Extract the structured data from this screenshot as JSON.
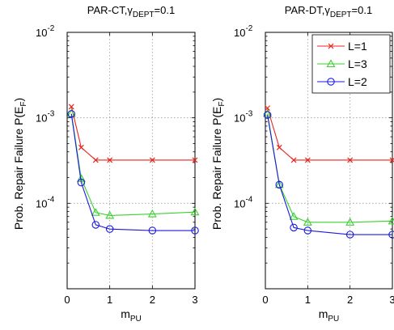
{
  "chart_data": [
    {
      "type": "line",
      "title": "PAR-CT,",
      "title_math": "γ",
      "title_sub": "DEPT",
      "title_tail": "=0.1",
      "xlabel": "m",
      "xlabel_sub": "PU",
      "ylabel": "Prob. Repair Failure P(E",
      "ylabel_sub": "F",
      "ylabel_tail": ")",
      "xlim": [
        0,
        3
      ],
      "ylim": [
        1e-05,
        0.01
      ],
      "yscale": "log",
      "grid": true,
      "xticks": [
        "0",
        "1",
        "2",
        "3"
      ],
      "ytick_labels": [
        {
          "base": "10",
          "exp": "-4",
          "value": 0.0001
        },
        {
          "base": "10",
          "exp": "-3",
          "value": 0.001
        },
        {
          "base": "10",
          "exp": "-2",
          "value": 0.01
        }
      ],
      "series": [
        {
          "name": "L=1",
          "color": "#e8261e",
          "marker": "x",
          "x": [
            0.1,
            0.33,
            0.67,
            1,
            2,
            3
          ],
          "y": [
            0.00135,
            0.00045,
            0.00032,
            0.00032,
            0.00032,
            0.00032
          ]
        },
        {
          "name": "L=3",
          "color": "#3ad12f",
          "marker": "triangle",
          "x": [
            0.1,
            0.33,
            0.67,
            1,
            2,
            3
          ],
          "y": [
            0.00112,
            0.000195,
            7.8e-05,
            7.2e-05,
            7.5e-05,
            7.9e-05
          ]
        },
        {
          "name": "L=2",
          "color": "#1a1adc",
          "marker": "circle",
          "x": [
            0.1,
            0.33,
            0.67,
            1,
            2,
            3
          ],
          "y": [
            0.00111,
            0.000175,
            5.6e-05,
            5e-05,
            4.8e-05,
            4.8e-05
          ]
        }
      ]
    },
    {
      "type": "line",
      "title": "PAR-DT,",
      "title_math": "γ",
      "title_sub": "DEPT",
      "title_tail": "=0.1",
      "xlabel": "m",
      "xlabel_sub": "PU",
      "ylabel": "Prob. Repair Failure P(E",
      "ylabel_sub": "F",
      "ylabel_tail": ")",
      "xlim": [
        0,
        3
      ],
      "ylim": [
        1e-05,
        0.01
      ],
      "yscale": "log",
      "grid": true,
      "legend": "top-right",
      "xticks": [
        "0",
        "1",
        "2",
        "3"
      ],
      "ytick_labels": [
        {
          "base": "10",
          "exp": "-4",
          "value": 0.0001
        },
        {
          "base": "10",
          "exp": "-3",
          "value": 0.001
        },
        {
          "base": "10",
          "exp": "-2",
          "value": 0.01
        }
      ],
      "series": [
        {
          "name": "L=1",
          "color": "#e8261e",
          "marker": "x",
          "x": [
            0.05,
            0.33,
            0.67,
            1,
            2,
            3
          ],
          "y": [
            0.0013,
            0.00045,
            0.00032,
            0.00032,
            0.00032,
            0.00032
          ]
        },
        {
          "name": "L=3",
          "color": "#3ad12f",
          "marker": "triangle",
          "x": [
            0.05,
            0.33,
            0.67,
            1,
            2,
            3
          ],
          "y": [
            0.00112,
            0.000165,
            7e-05,
            6e-05,
            6e-05,
            6.2e-05
          ]
        },
        {
          "name": "L=2",
          "color": "#1a1adc",
          "marker": "circle",
          "x": [
            0.05,
            0.33,
            0.67,
            1,
            2,
            3
          ],
          "y": [
            0.00108,
            0.000165,
            5.2e-05,
            4.8e-05,
            4.3e-05,
            4.3e-05
          ]
        }
      ]
    }
  ]
}
